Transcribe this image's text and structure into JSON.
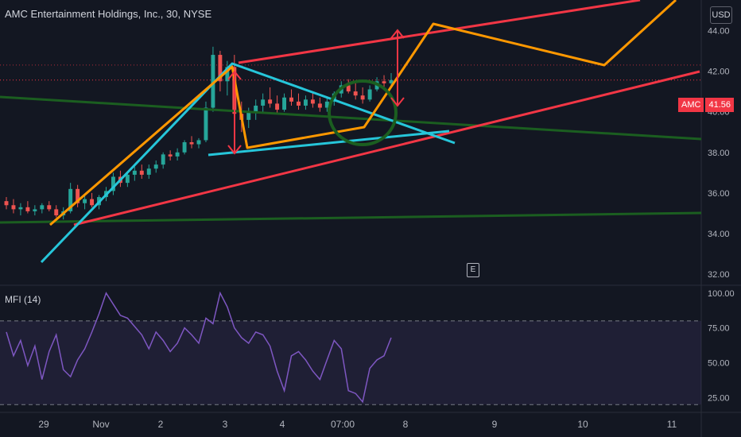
{
  "header": {
    "title": "AMC Entertainment Holdings, Inc., 30, NYSE",
    "currency_button": "USD"
  },
  "price_tag": {
    "symbol": "AMC",
    "value": "41.56"
  },
  "earnings_badge": "E",
  "indicator": {
    "label": "MFI (14)"
  },
  "colors": {
    "background": "#131722",
    "up_candle": "#26a69a",
    "down_candle": "#ef5350",
    "mfi_line": "#7e57c2",
    "mfi_band": "rgba(126,87,194,0.12)",
    "trend_red": "#f23645",
    "trend_orange": "#ff9800",
    "trend_cyan": "#26c6da",
    "trend_green": "#1b5e20"
  },
  "chart_data": [
    {
      "type": "candlestick",
      "title": "AMC Entertainment Holdings, Inc., 30, NYSE",
      "y_ticks": [
        "44.00",
        "42.00",
        "40.00",
        "38.00",
        "36.00",
        "34.00",
        "32.00"
      ],
      "ylim": [
        31.5,
        45.5
      ],
      "x_ticks": [
        "29",
        "Nov",
        "2",
        "3",
        "4",
        "07:00",
        "8",
        "9",
        "10",
        "11"
      ],
      "last_price": 41.56,
      "ohlc": [
        [
          35.6,
          35.8,
          35.2,
          35.4
        ],
        [
          35.4,
          35.7,
          35.0,
          35.2
        ],
        [
          35.2,
          35.5,
          34.9,
          35.3
        ],
        [
          35.3,
          35.6,
          35.0,
          35.1
        ],
        [
          35.1,
          35.4,
          34.9,
          35.2
        ],
        [
          35.2,
          35.5,
          35.0,
          35.4
        ],
        [
          35.4,
          35.6,
          35.1,
          35.2
        ],
        [
          35.2,
          35.4,
          34.8,
          34.9
        ],
        [
          34.9,
          35.3,
          34.7,
          35.1
        ],
        [
          35.1,
          36.5,
          35.0,
          36.2
        ],
        [
          36.2,
          36.4,
          35.3,
          35.5
        ],
        [
          35.5,
          35.9,
          35.2,
          35.7
        ],
        [
          35.7,
          36.0,
          35.3,
          35.4
        ],
        [
          35.4,
          35.9,
          35.2,
          35.8
        ],
        [
          35.8,
          36.3,
          35.6,
          36.1
        ],
        [
          36.1,
          37.0,
          35.9,
          36.8
        ],
        [
          36.8,
          37.1,
          36.3,
          36.5
        ],
        [
          36.5,
          37.0,
          36.3,
          36.9
        ],
        [
          36.9,
          37.3,
          36.6,
          37.1
        ],
        [
          37.1,
          37.4,
          36.7,
          36.9
        ],
        [
          36.9,
          37.4,
          36.7,
          37.2
        ],
        [
          37.2,
          37.6,
          37.0,
          37.4
        ],
        [
          37.4,
          38.0,
          37.2,
          37.9
        ],
        [
          37.9,
          38.1,
          37.6,
          37.8
        ],
        [
          37.8,
          38.2,
          37.6,
          38.0
        ],
        [
          38.0,
          38.6,
          37.9,
          38.5
        ],
        [
          38.5,
          38.8,
          38.2,
          38.4
        ],
        [
          38.4,
          38.7,
          38.2,
          38.6
        ],
        [
          38.6,
          40.5,
          38.5,
          40.2
        ],
        [
          40.2,
          43.2,
          40.0,
          42.8
        ],
        [
          42.8,
          43.0,
          41.0,
          41.5
        ],
        [
          41.5,
          42.5,
          40.8,
          42.2
        ],
        [
          42.2,
          42.8,
          39.5,
          39.9
        ],
        [
          39.9,
          40.5,
          39.0,
          39.6
        ],
        [
          39.6,
          40.2,
          39.2,
          40.0
        ],
        [
          40.0,
          40.6,
          39.6,
          40.3
        ],
        [
          40.3,
          40.9,
          40.0,
          40.6
        ],
        [
          40.6,
          41.2,
          40.2,
          40.4
        ],
        [
          40.4,
          40.8,
          39.9,
          40.1
        ],
        [
          40.1,
          40.9,
          40.0,
          40.7
        ],
        [
          40.7,
          41.1,
          40.3,
          40.5
        ],
        [
          40.5,
          40.9,
          40.1,
          40.3
        ],
        [
          40.3,
          40.8,
          40.1,
          40.6
        ],
        [
          40.6,
          41.0,
          40.2,
          40.4
        ],
        [
          40.4,
          40.7,
          40.0,
          40.2
        ],
        [
          40.2,
          40.7,
          40.0,
          40.5
        ],
        [
          40.5,
          41.0,
          40.3,
          40.9
        ],
        [
          40.9,
          41.5,
          40.7,
          41.3
        ],
        [
          41.3,
          41.6,
          40.9,
          41.0
        ],
        [
          41.0,
          41.4,
          40.6,
          40.8
        ],
        [
          40.8,
          41.2,
          40.4,
          40.6
        ],
        [
          40.6,
          41.3,
          40.5,
          41.1
        ],
        [
          41.1,
          41.7,
          41.0,
          41.5
        ],
        [
          41.5,
          41.8,
          41.1,
          41.4
        ],
        [
          41.4,
          41.9,
          41.2,
          41.56
        ]
      ]
    },
    {
      "type": "line",
      "title": "MFI (14)",
      "y_ticks": [
        "100.00",
        "75.00",
        "50.00",
        "25.00"
      ],
      "ylim": [
        15,
        105
      ],
      "band": [
        20,
        80
      ],
      "values": [
        72,
        55,
        66,
        48,
        62,
        38,
        58,
        70,
        45,
        40,
        52,
        60,
        72,
        85,
        100,
        92,
        84,
        82,
        76,
        70,
        60,
        72,
        66,
        58,
        64,
        75,
        70,
        64,
        82,
        78,
        100,
        90,
        75,
        68,
        64,
        72,
        70,
        62,
        44,
        30,
        55,
        58,
        52,
        44,
        38,
        52,
        66,
        60,
        30,
        28,
        22,
        46,
        52,
        55,
        68
      ]
    }
  ],
  "overlay_lines": {
    "note": "trendline drawings",
    "red": [
      [
        [
          93,
          283
        ],
        [
          880,
          90
        ]
      ],
      [
        [
          300,
          79
        ],
        [
          805,
          0
        ]
      ]
    ],
    "orange": [
      [
        [
          63,
          283
        ],
        [
          292,
          84
        ],
        [
          311,
          186
        ],
        [
          458,
          160
        ],
        [
          545,
          30
        ],
        [
          760,
          82
        ],
        [
          850,
          0
        ]
      ]
    ],
    "cyan": [
      [
        [
          52,
          330
        ],
        [
          292,
          80
        ],
        [
          572,
          180
        ]
      ],
      [
        [
          262,
          195
        ],
        [
          565,
          165
        ]
      ]
    ],
    "green": [
      [
        [
          0,
          122
        ],
        [
          882,
          175
        ]
      ],
      [
        [
          0,
          280
        ],
        [
          882,
          268
        ]
      ]
    ]
  }
}
